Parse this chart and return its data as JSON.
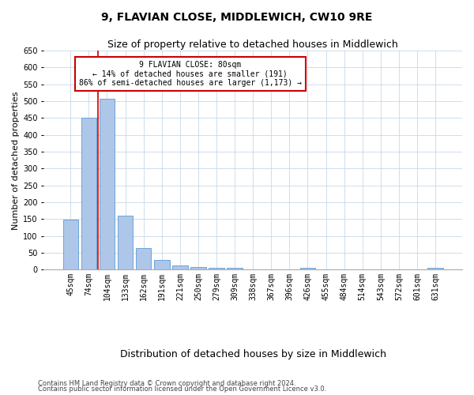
{
  "title": "9, FLAVIAN CLOSE, MIDDLEWICH, CW10 9RE",
  "subtitle": "Size of property relative to detached houses in Middlewich",
  "xlabel": "Distribution of detached houses by size in Middlewich",
  "ylabel": "Number of detached properties",
  "footnote1": "Contains HM Land Registry data © Crown copyright and database right 2024.",
  "footnote2": "Contains public sector information licensed under the Open Government Licence v3.0.",
  "categories": [
    "45sqm",
    "74sqm",
    "104sqm",
    "133sqm",
    "162sqm",
    "191sqm",
    "221sqm",
    "250sqm",
    "279sqm",
    "309sqm",
    "338sqm",
    "367sqm",
    "396sqm",
    "426sqm",
    "455sqm",
    "484sqm",
    "514sqm",
    "543sqm",
    "572sqm",
    "601sqm",
    "631sqm"
  ],
  "values": [
    148,
    450,
    508,
    160,
    65,
    30,
    12,
    8,
    6,
    5,
    0,
    0,
    0,
    6,
    0,
    0,
    0,
    0,
    0,
    0,
    6
  ],
  "bar_color": "#aec6e8",
  "bar_edge_color": "#5b9bd5",
  "vline_x_idx": 1.5,
  "vline_color": "#cc0000",
  "annotation_text_line1": "9 FLAVIAN CLOSE: 80sqm",
  "annotation_text_line2": "← 14% of detached houses are smaller (191)",
  "annotation_text_line3": "86% of semi-detached houses are larger (1,173) →",
  "annotation_box_color": "#cc0000",
  "annotation_text_color": "#000000",
  "ylim": [
    0,
    650
  ],
  "yticks": [
    0,
    50,
    100,
    150,
    200,
    250,
    300,
    350,
    400,
    450,
    500,
    550,
    600,
    650
  ],
  "background_color": "#ffffff",
  "grid_color": "#c8d8e8",
  "title_fontsize": 10,
  "subtitle_fontsize": 9,
  "ylabel_fontsize": 8,
  "xlabel_fontsize": 9,
  "tick_fontsize": 7,
  "annot_fontsize": 7,
  "footnote_fontsize": 6
}
